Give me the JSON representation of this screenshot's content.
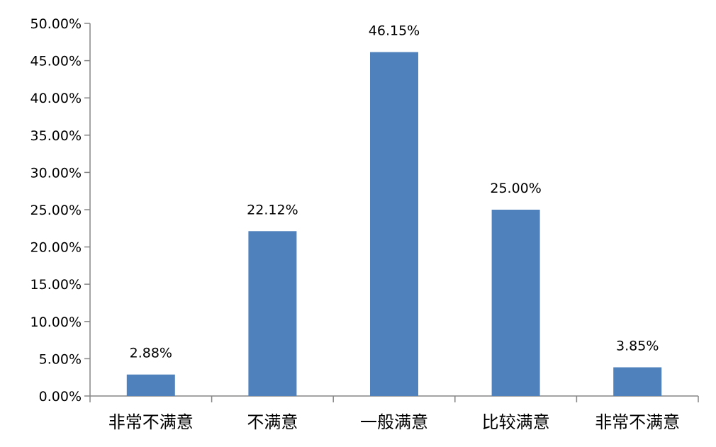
{
  "chart_data": {
    "type": "bar",
    "categories": [
      "非常不满意",
      "不满意",
      "一般满意",
      "比较满意",
      "非常不满意"
    ],
    "values": [
      2.88,
      22.12,
      46.15,
      25.0,
      3.85
    ],
    "data_labels": [
      "2.88%",
      "22.12%",
      "46.15%",
      "25.00%",
      "3.85%"
    ],
    "title": "",
    "xlabel": "",
    "ylabel": "",
    "ylim": [
      0,
      50
    ],
    "yticks": [
      0,
      5,
      10,
      15,
      20,
      25,
      30,
      35,
      40,
      45,
      50
    ],
    "ytick_labels": [
      "0.00%",
      "5.00%",
      "10.00%",
      "15.00%",
      "20.00%",
      "25.00%",
      "30.00%",
      "35.00%",
      "40.00%",
      "45.00%",
      "50.00%"
    ],
    "grid": false,
    "legend": "none",
    "bar_color": "#4F81BD",
    "axis_color": "#868686"
  }
}
